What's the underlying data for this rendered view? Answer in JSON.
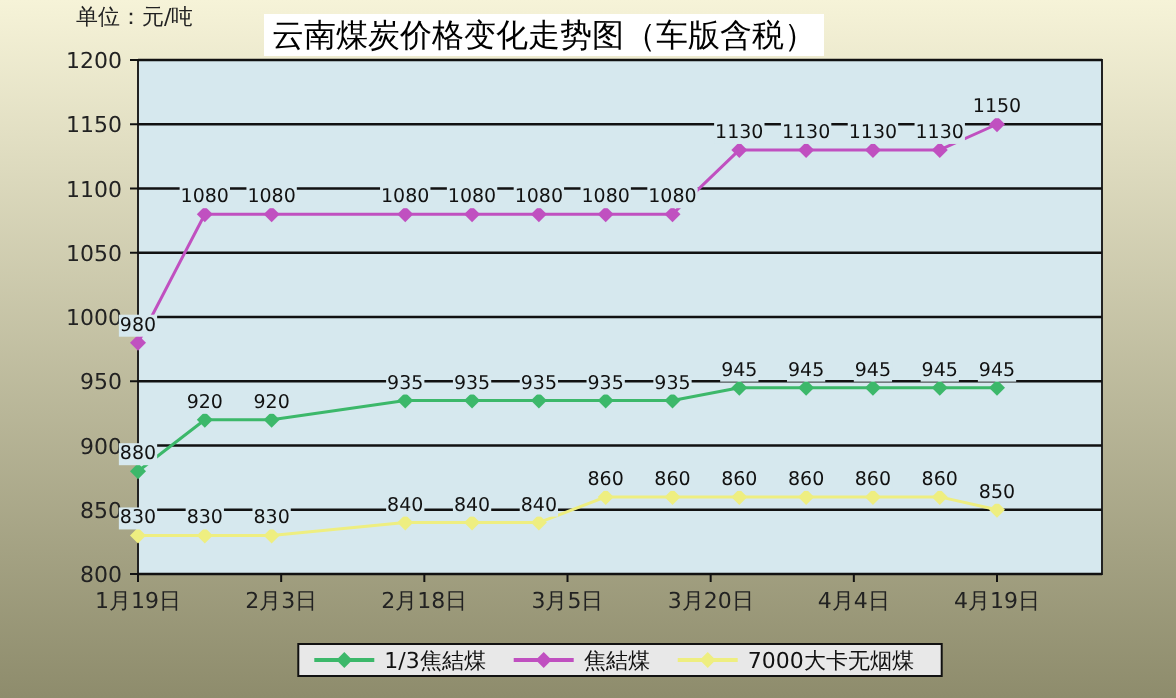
{
  "chart_data": {
    "type": "line",
    "title": "云南煤炭价格变化走势图（车版含税）",
    "ylabel": "单位：元/吨",
    "x": [
      "--01-19",
      "--01-26",
      "--02-02",
      "--02-16",
      "--02-23",
      "--03-02",
      "--03-09",
      "--03-16",
      "--03-23",
      "--03-30",
      "--04-06",
      "--04-13",
      "--04-19"
    ],
    "series": [
      {
        "name": "1/3焦結煤",
        "color": "#3cb86a",
        "values": [
          880,
          920,
          920,
          935,
          935,
          935,
          935,
          935,
          945,
          945,
          945,
          945,
          945
        ]
      },
      {
        "name": "焦結煤",
        "color": "#c050c0",
        "values": [
          980,
          1080,
          1080,
          1080,
          1080,
          1080,
          1080,
          1080,
          1130,
          1130,
          1130,
          1130,
          1150
        ]
      },
      {
        "name": "7000大卡无烟煤",
        "color": "#eeee80",
        "values": [
          830,
          830,
          830,
          840,
          840,
          840,
          860,
          860,
          860,
          860,
          860,
          860,
          850
        ]
      }
    ],
    "xlim": [
      "--01-19",
      "--04-30"
    ],
    "xticks": [
      {
        "value": "--01-19",
        "label": "1月19日"
      },
      {
        "value": "--02-03",
        "label": "2月3日"
      },
      {
        "value": "--02-18",
        "label": "2月18日"
      },
      {
        "value": "--03-05",
        "label": "3月5日"
      },
      {
        "value": "--03-20",
        "label": "3月20日"
      },
      {
        "value": "--04-04",
        "label": "4月4日"
      },
      {
        "value": "--04-19",
        "label": "4月19日"
      }
    ],
    "ylim": [
      800,
      1200
    ],
    "yticks": [
      800,
      850,
      900,
      950,
      1000,
      1050,
      1100,
      1150,
      1200
    ],
    "grid": "y",
    "legend": "bottom",
    "marker": "diamond",
    "line_style": "solid",
    "data_labels": true
  }
}
